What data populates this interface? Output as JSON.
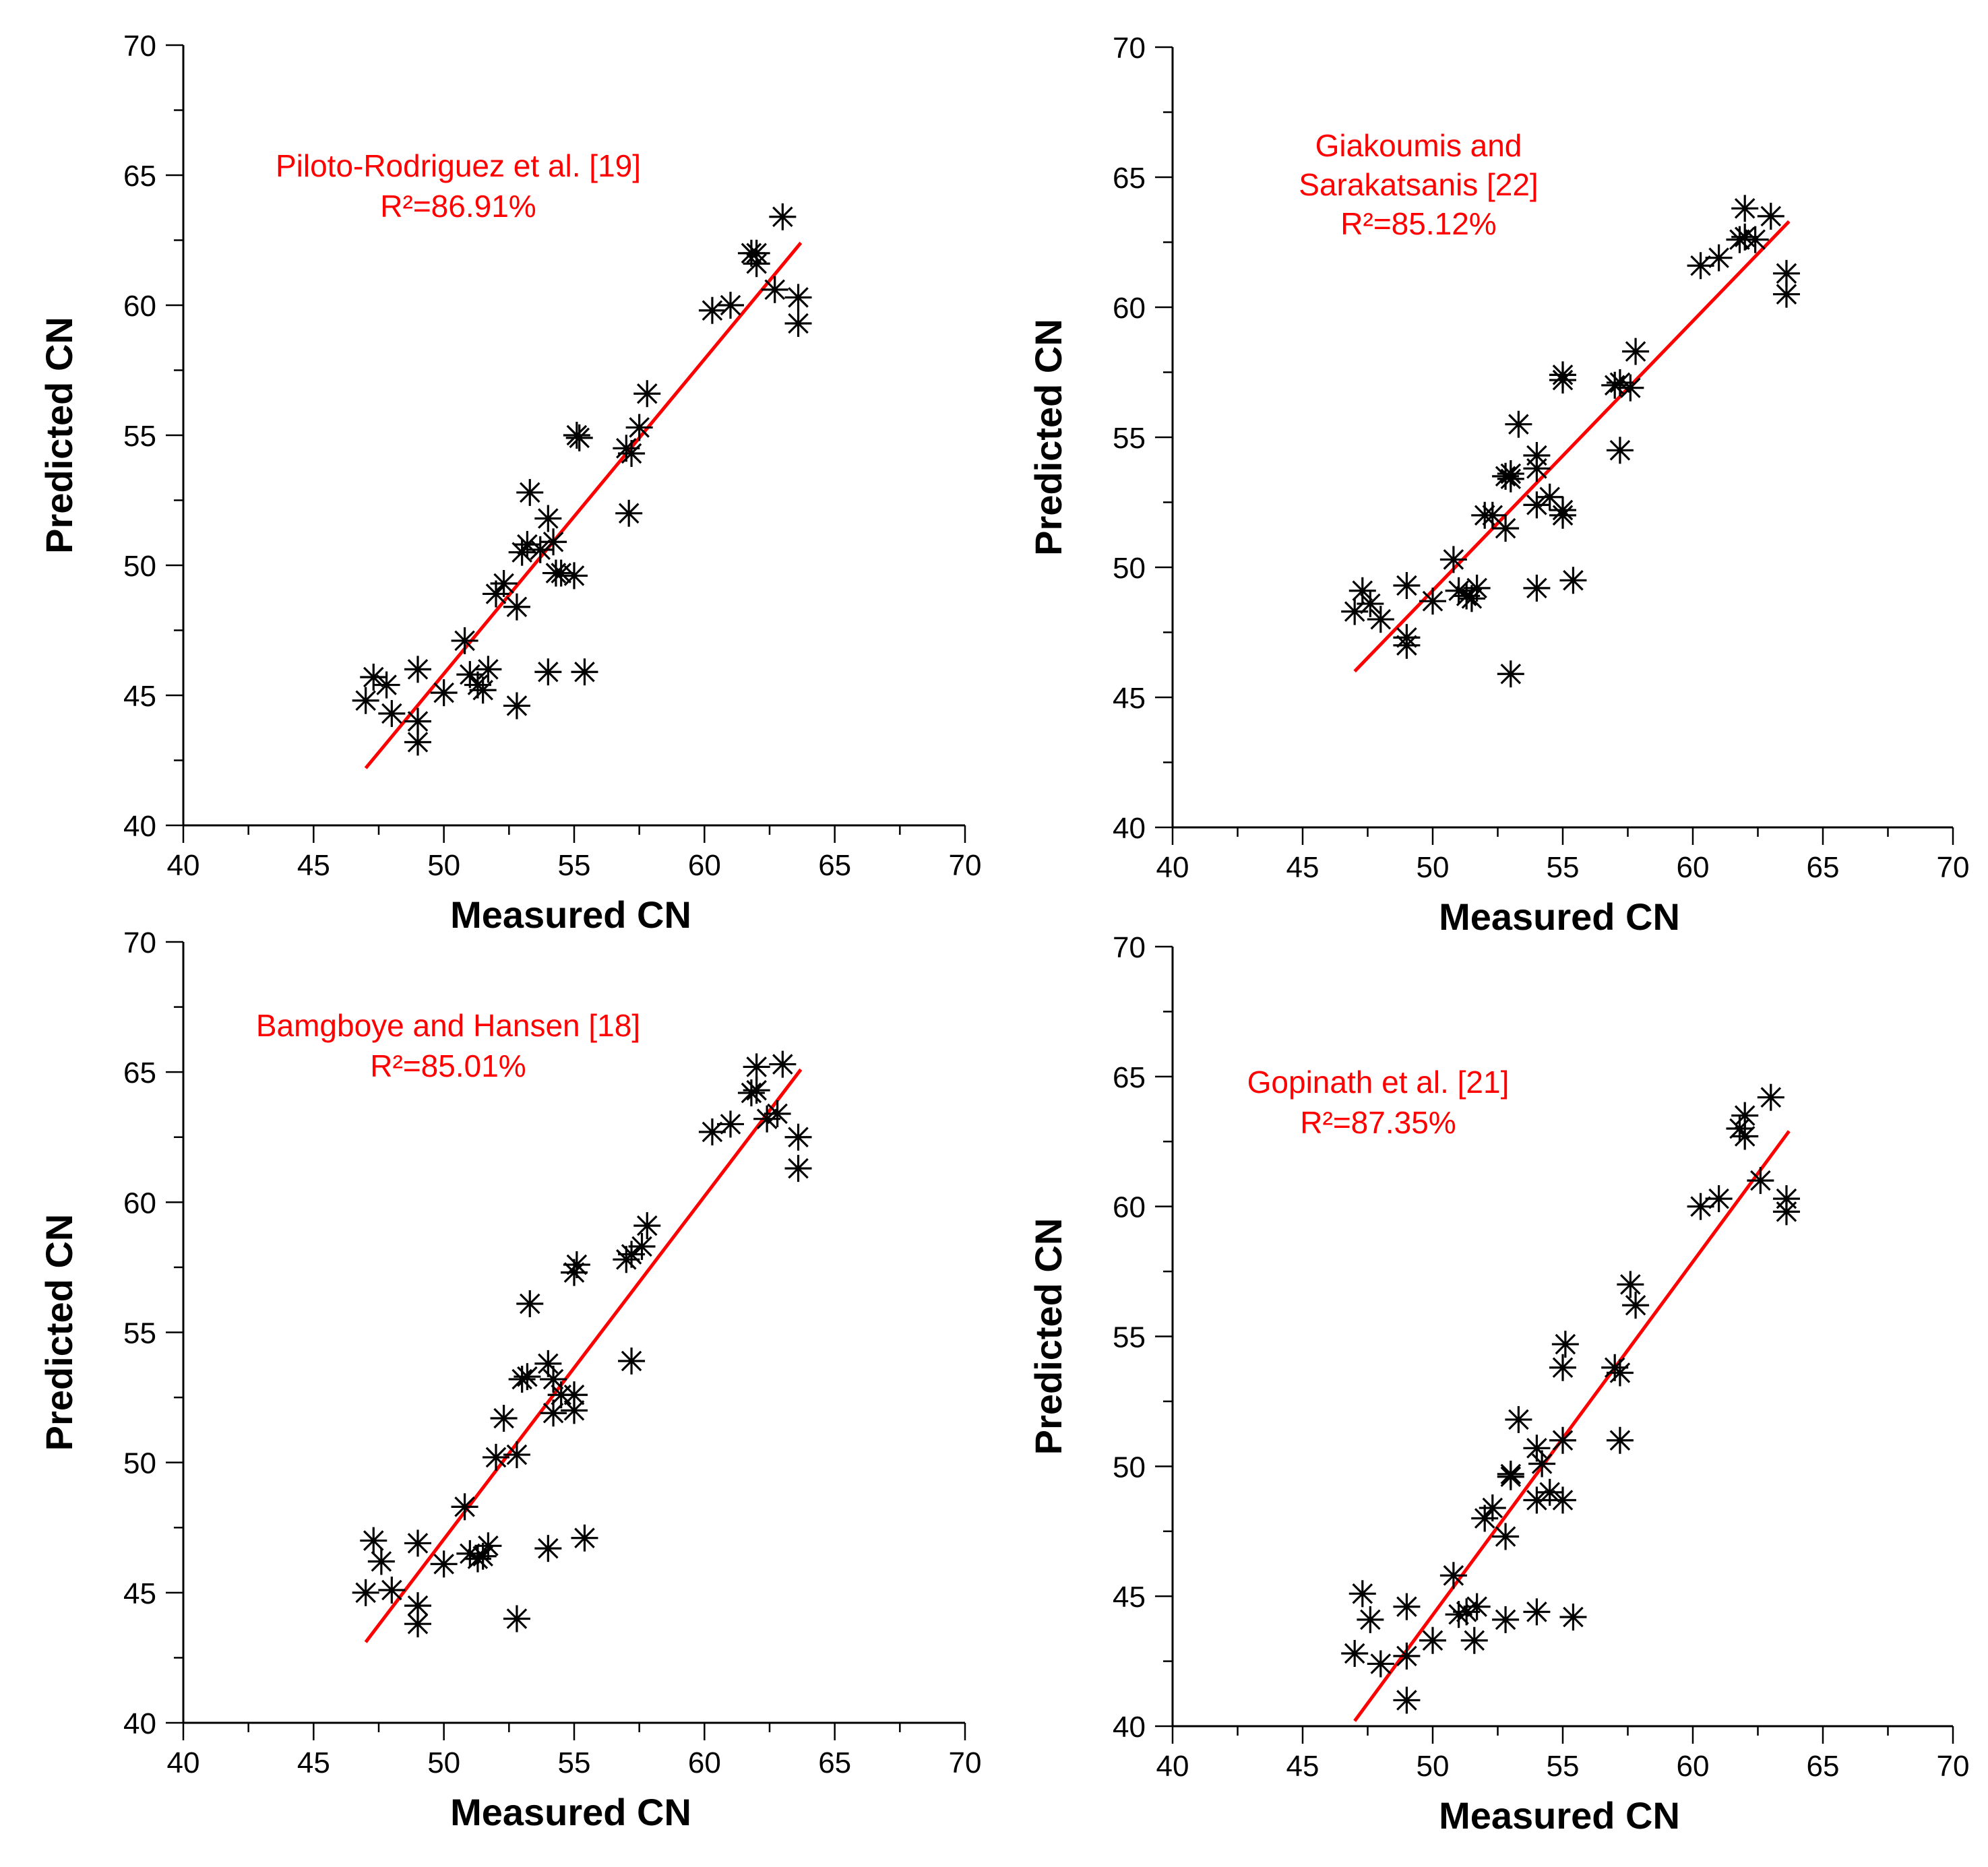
{
  "chart_data": [
    {
      "type": "scatter",
      "xlabel": "Measured CN",
      "ylabel": "Predicted CN",
      "xlim": [
        40,
        70
      ],
      "ylim": [
        40,
        70
      ],
      "xticks": [
        40,
        45,
        50,
        55,
        60,
        65,
        70
      ],
      "yticks": [
        40,
        45,
        50,
        55,
        60,
        65,
        70
      ],
      "annotation": [
        "Piloto-Rodriguez et al. [19]",
        "R²=86.91%"
      ],
      "fit_line": [
        [
          47,
          42.2
        ],
        [
          63.7,
          62.4
        ]
      ],
      "points": [
        [
          47,
          44.8
        ],
        [
          47.3,
          45.7
        ],
        [
          47.8,
          45.4
        ],
        [
          48,
          44.3
        ],
        [
          49,
          46
        ],
        [
          49,
          44
        ],
        [
          49,
          43.2
        ],
        [
          50,
          45.1
        ],
        [
          50.8,
          47.1
        ],
        [
          51,
          45.8
        ],
        [
          51.3,
          45.4
        ],
        [
          51.5,
          45.2
        ],
        [
          51.7,
          46
        ],
        [
          52,
          48.9
        ],
        [
          52.3,
          49.3
        ],
        [
          52.8,
          48.4
        ],
        [
          52.8,
          44.6
        ],
        [
          53,
          50.5
        ],
        [
          53.2,
          50.8
        ],
        [
          53.3,
          52.8
        ],
        [
          53.7,
          50.6
        ],
        [
          54,
          51.8
        ],
        [
          54.2,
          50.9
        ],
        [
          54,
          45.9
        ],
        [
          54.5,
          49.7
        ],
        [
          54.3,
          49.7
        ],
        [
          55,
          49.6
        ],
        [
          55.2,
          54.9
        ],
        [
          55.1,
          55
        ],
        [
          55.4,
          45.9
        ],
        [
          57,
          54.5
        ],
        [
          57.2,
          54.3
        ],
        [
          57.1,
          52
        ],
        [
          57.5,
          55.3
        ],
        [
          57.8,
          56.6
        ],
        [
          60.3,
          59.8
        ],
        [
          61,
          60
        ],
        [
          61.8,
          62
        ],
        [
          62,
          61.6
        ],
        [
          62,
          62
        ],
        [
          62.7,
          60.6
        ],
        [
          63,
          63.4
        ],
        [
          63.6,
          60.3
        ],
        [
          63.6,
          59.3
        ]
      ]
    },
    {
      "type": "scatter",
      "xlabel": "Measured CN",
      "ylabel": "Predicted CN",
      "xlim": [
        40,
        70
      ],
      "ylim": [
        40,
        70
      ],
      "xticks": [
        40,
        45,
        50,
        55,
        60,
        65,
        70
      ],
      "yticks": [
        40,
        45,
        50,
        55,
        60,
        65,
        70
      ],
      "annotation": [
        "Giakoumis and",
        "Sarakatsanis [22]",
        "R²=85.12%"
      ],
      "fit_line": [
        [
          47,
          46
        ],
        [
          63.7,
          63.3
        ]
      ],
      "points": [
        [
          47,
          48.3
        ],
        [
          47.3,
          49.1
        ],
        [
          47.6,
          48.6
        ],
        [
          48,
          48
        ],
        [
          49,
          49.3
        ],
        [
          49,
          47.3
        ],
        [
          49,
          47
        ],
        [
          50,
          48.7
        ],
        [
          50.8,
          50.3
        ],
        [
          51,
          49.1
        ],
        [
          51.3,
          48.9
        ],
        [
          51.5,
          48.8
        ],
        [
          51.7,
          49.2
        ],
        [
          52,
          52
        ],
        [
          52.3,
          52
        ],
        [
          52.8,
          51.5
        ],
        [
          52.8,
          53.5
        ],
        [
          53,
          53.4
        ],
        [
          53,
          53.6
        ],
        [
          53.3,
          55.5
        ],
        [
          53,
          45.9
        ],
        [
          54,
          54.3
        ],
        [
          54,
          53.8
        ],
        [
          54,
          52.4
        ],
        [
          54,
          49.2
        ],
        [
          54.5,
          52.7
        ],
        [
          55,
          52
        ],
        [
          55,
          52.2
        ],
        [
          55,
          57.2
        ],
        [
          55,
          57.4
        ],
        [
          55.4,
          49.5
        ],
        [
          57,
          57
        ],
        [
          57.2,
          57.1
        ],
        [
          57.2,
          54.5
        ],
        [
          57.6,
          56.9
        ],
        [
          57.8,
          58.3
        ],
        [
          60.3,
          61.6
        ],
        [
          61,
          61.9
        ],
        [
          61.8,
          62.6
        ],
        [
          62,
          63.8
        ],
        [
          62,
          62.7
        ],
        [
          62.4,
          62.6
        ],
        [
          63,
          63.5
        ],
        [
          63.6,
          61.3
        ],
        [
          63.6,
          60.5
        ]
      ]
    },
    {
      "type": "scatter",
      "xlabel": "Measured CN",
      "ylabel": "Predicted CN",
      "xlim": [
        40,
        70
      ],
      "ylim": [
        40,
        70
      ],
      "xticks": [
        40,
        45,
        50,
        55,
        60,
        65,
        70
      ],
      "yticks": [
        40,
        45,
        50,
        55,
        60,
        65,
        70
      ],
      "annotation": [
        "Bamgboye and Hansen [18]",
        "R²=85.01%"
      ],
      "fit_line": [
        [
          47,
          43.1
        ],
        [
          63.7,
          65.1
        ]
      ],
      "points": [
        [
          47,
          45
        ],
        [
          47.3,
          47
        ],
        [
          47.6,
          46.2
        ],
        [
          48,
          45.1
        ],
        [
          49,
          46.9
        ],
        [
          49,
          44.5
        ],
        [
          49,
          43.8
        ],
        [
          50,
          46.1
        ],
        [
          50.8,
          48.3
        ],
        [
          51,
          46.5
        ],
        [
          51.3,
          46.3
        ],
        [
          51.5,
          46.4
        ],
        [
          51.7,
          46.8
        ],
        [
          52,
          50.2
        ],
        [
          52.3,
          51.7
        ],
        [
          52.8,
          50.3
        ],
        [
          52.8,
          44
        ],
        [
          53,
          53.2
        ],
        [
          53.2,
          53.3
        ],
        [
          53.3,
          56.1
        ],
        [
          54,
          53.8
        ],
        [
          54.2,
          53.2
        ],
        [
          54.2,
          51.9
        ],
        [
          54,
          46.7
        ],
        [
          54.5,
          52.6
        ],
        [
          55,
          52
        ],
        [
          55,
          52.6
        ],
        [
          55,
          57.3
        ],
        [
          55.1,
          57.6
        ],
        [
          55.4,
          47.1
        ],
        [
          57,
          57.8
        ],
        [
          57.2,
          58
        ],
        [
          57.2,
          53.9
        ],
        [
          57.6,
          58.3
        ],
        [
          57.8,
          59.1
        ],
        [
          60.3,
          62.7
        ],
        [
          61,
          63
        ],
        [
          61.8,
          64.2
        ],
        [
          62,
          65.2
        ],
        [
          62,
          64.3
        ],
        [
          62.4,
          63.2
        ],
        [
          62.8,
          63.4
        ],
        [
          63,
          65.3
        ],
        [
          63.6,
          62.5
        ],
        [
          63.6,
          61.3
        ]
      ]
    },
    {
      "type": "scatter",
      "xlabel": "Measured CN",
      "ylabel": "Predicted CN",
      "xlim": [
        40,
        70
      ],
      "ylim": [
        40,
        70
      ],
      "xticks": [
        40,
        45,
        50,
        55,
        60,
        65,
        70
      ],
      "yticks": [
        40,
        45,
        50,
        55,
        60,
        65,
        70
      ],
      "annotation": [
        "Gopinath et al. [21]",
        "R²=87.35%"
      ],
      "fit_line": [
        [
          47,
          40.2
        ],
        [
          63.7,
          62.9
        ]
      ],
      "points": [
        [
          47,
          42.8
        ],
        [
          47.3,
          45.1
        ],
        [
          47.6,
          44.1
        ],
        [
          48,
          42.4
        ],
        [
          49,
          44.6
        ],
        [
          49,
          42.7
        ],
        [
          49,
          41
        ],
        [
          50,
          43.3
        ],
        [
          50.8,
          45.8
        ],
        [
          51,
          44.3
        ],
        [
          51.3,
          44.4
        ],
        [
          51.6,
          43.3
        ],
        [
          51.7,
          44.6
        ],
        [
          52,
          48
        ],
        [
          52.3,
          48.4
        ],
        [
          52.8,
          47.3
        ],
        [
          52.8,
          44.1
        ],
        [
          53,
          49.6
        ],
        [
          53,
          49.7
        ],
        [
          53.3,
          51.8
        ],
        [
          54,
          50.7
        ],
        [
          54.2,
          50.1
        ],
        [
          54,
          48.7
        ],
        [
          54,
          44.4
        ],
        [
          54.5,
          49
        ],
        [
          55,
          48.7
        ],
        [
          55,
          51
        ],
        [
          55,
          53.8
        ],
        [
          55.1,
          54.7
        ],
        [
          55.4,
          44.2
        ],
        [
          57,
          53.8
        ],
        [
          57.2,
          53.6
        ],
        [
          57.2,
          51
        ],
        [
          57.6,
          57
        ],
        [
          57.8,
          56.2
        ],
        [
          60.3,
          60
        ],
        [
          61,
          60.3
        ],
        [
          61.8,
          63
        ],
        [
          62,
          63.5
        ],
        [
          62,
          62.7
        ],
        [
          62.6,
          61
        ],
        [
          63,
          64.2
        ],
        [
          63.6,
          60.3
        ],
        [
          63.6,
          59.8
        ]
      ]
    }
  ]
}
